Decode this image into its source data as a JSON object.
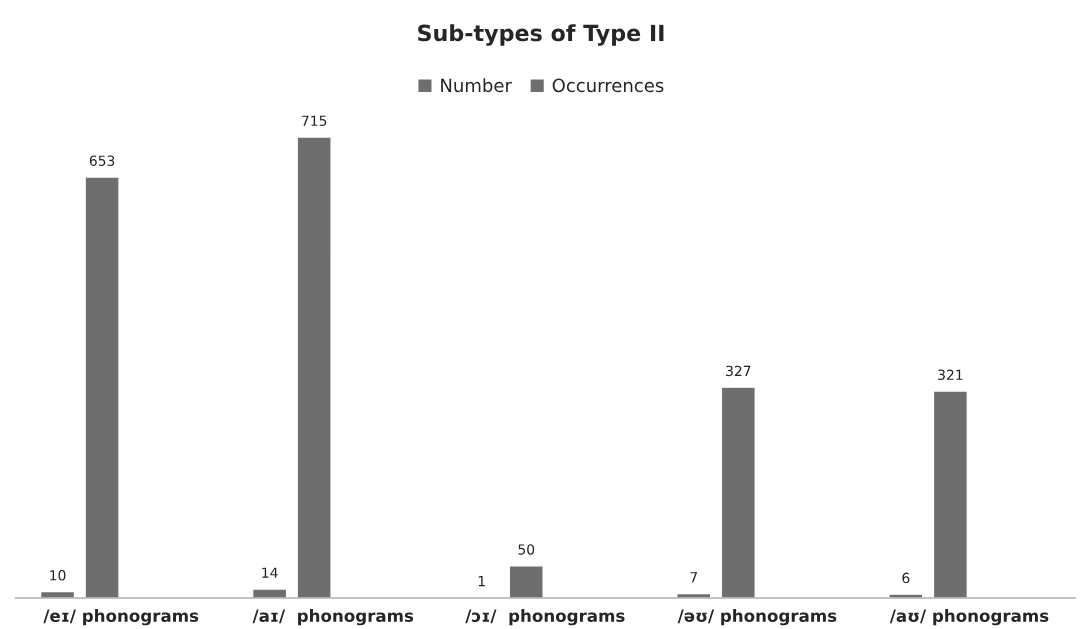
{
  "chart_data": {
    "type": "bar",
    "title": "Sub-types of Type II",
    "categories": [
      "/eɪ/ phonograms",
      "/aɪ/  phonograms",
      "/ɔɪ/  phonograms",
      "/əʊ/ phonograms",
      "/aʊ/ phonograms"
    ],
    "series": [
      {
        "name": "Number",
        "color": "#6e6e6e",
        "values": [
          10,
          14,
          1,
          7,
          6
        ]
      },
      {
        "name": "Occurrences",
        "color": "#6e6e6e",
        "values": [
          653,
          715,
          50,
          327,
          321
        ]
      }
    ],
    "data_labels": true,
    "legend": "top",
    "grid": false
  }
}
